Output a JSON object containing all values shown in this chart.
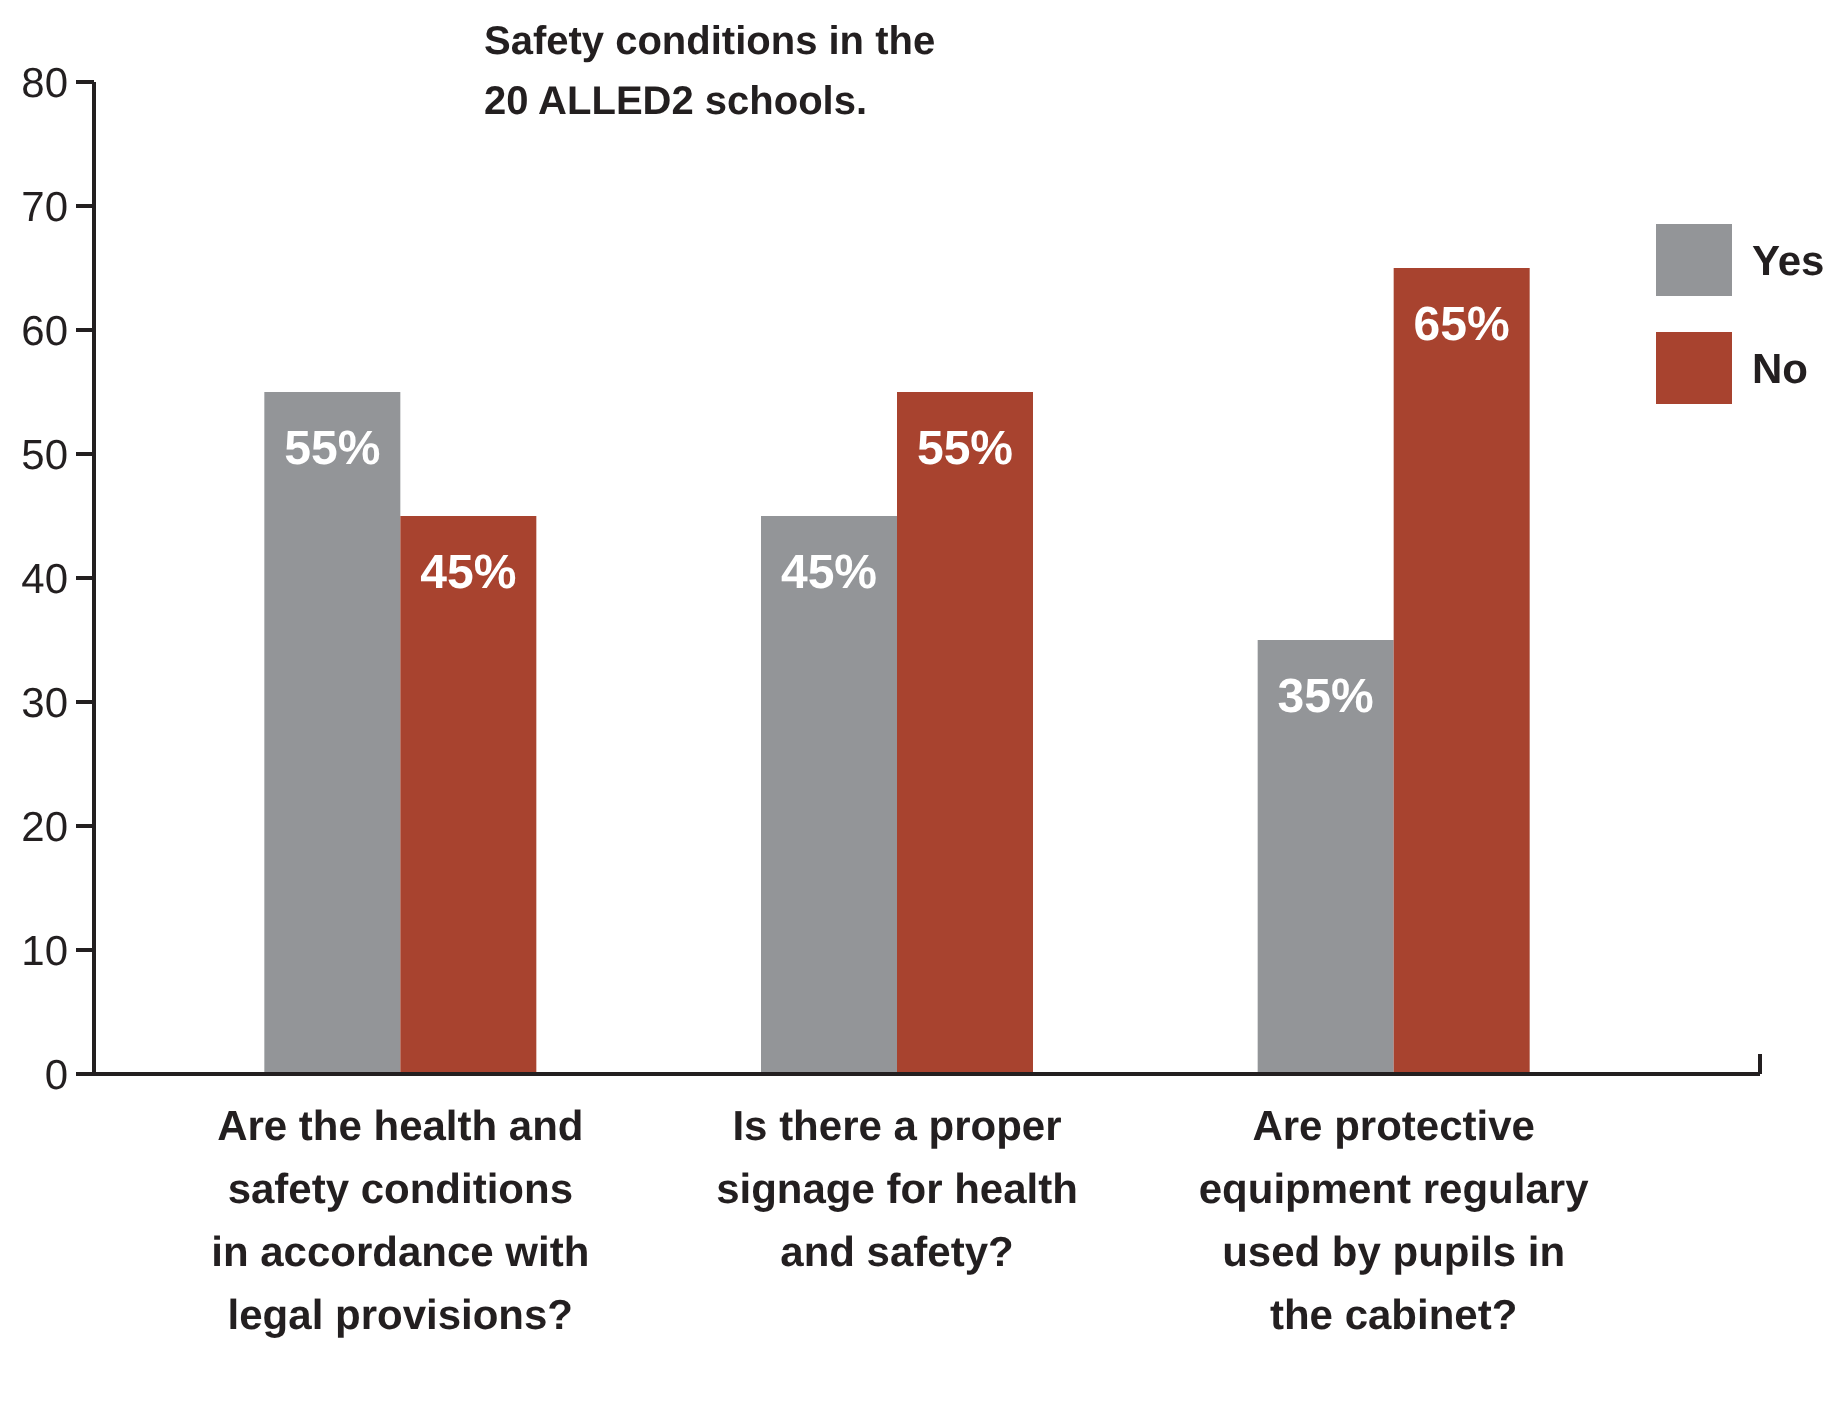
{
  "chart_data": {
    "type": "bar",
    "title": "Safety conditions in the 20 ALLED2 schools.",
    "categories": [
      "Are the health and safety conditions in accordance with legal provisions?",
      "Is there a proper signage for health and safety?",
      "Are protective equipment regulary used by pupils in the cabinet?"
    ],
    "series": [
      {
        "name": "Yes",
        "color": "#939598",
        "values": [
          55,
          45,
          35
        ],
        "value_labels": [
          "55%",
          "45%",
          "35%"
        ]
      },
      {
        "name": "No",
        "color": "#a8432f",
        "values": [
          45,
          55,
          65
        ],
        "value_labels": [
          "45%",
          "55%",
          "65%"
        ]
      }
    ],
    "ylim": [
      0,
      80
    ],
    "yticks": [
      0,
      10,
      20,
      30,
      40,
      50,
      60,
      70,
      80
    ],
    "grid": false,
    "legend": "top right"
  }
}
